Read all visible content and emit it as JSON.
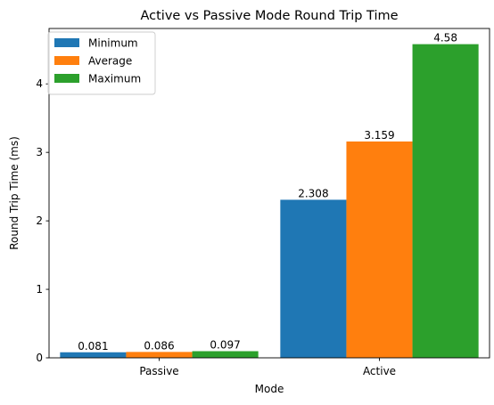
{
  "chart_data": {
    "type": "bar",
    "title": "Active vs Passive Mode Round Trip Time",
    "xlabel": "Mode",
    "ylabel": "Round Trip Time (ms)",
    "categories": [
      "Passive",
      "Active"
    ],
    "series": [
      {
        "name": "Minimum",
        "values": [
          0.081,
          2.308
        ],
        "color": "#1f77b4"
      },
      {
        "name": "Average",
        "values": [
          0.086,
          3.159
        ],
        "color": "#ff7f0e"
      },
      {
        "name": "Maximum",
        "values": [
          0.097,
          4.58
        ],
        "color": "#2ca02c"
      }
    ],
    "data_labels": [
      [
        "0.081",
        "2.308"
      ],
      [
        "0.086",
        "3.159"
      ],
      [
        "0.097",
        "4.58"
      ]
    ],
    "yticks": [
      0,
      1,
      2,
      3,
      4
    ],
    "ylim": [
      0,
      4.809
    ],
    "grid": false,
    "legend_position": "top-left"
  }
}
